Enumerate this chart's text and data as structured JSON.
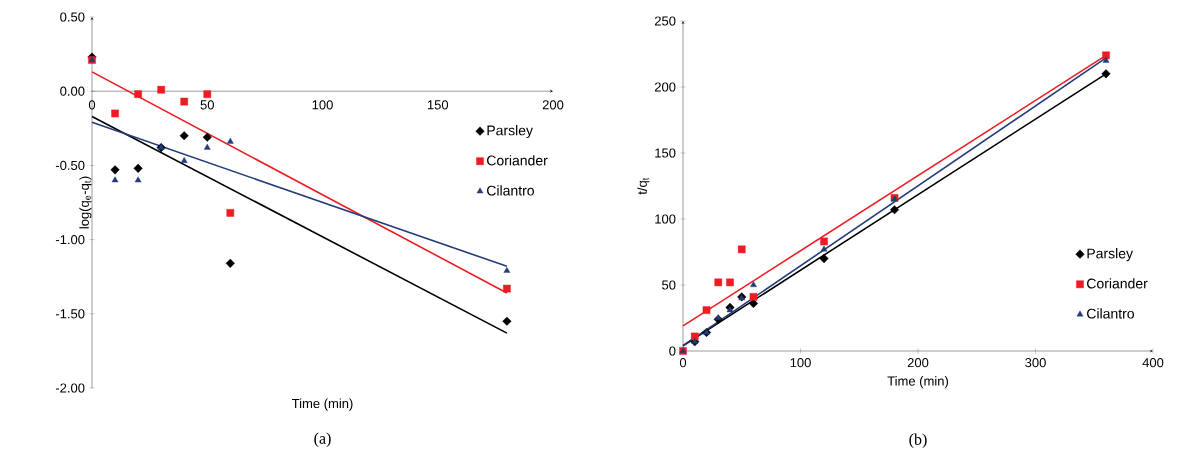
{
  "chart_data": [
    {
      "type": "scatter",
      "xlabel": "Time (min)",
      "ylabel": "log(q$_{e}$-q$_{t}$)",
      "xlim": [
        0,
        200
      ],
      "ylim": [
        -2,
        0.5
      ],
      "xticks": [
        0,
        50,
        100,
        150,
        200
      ],
      "yticks": [
        {
          "value": -2,
          "label": "-2.00"
        },
        {
          "value": -1.5,
          "label": "-1.50"
        },
        {
          "value": -1,
          "label": "-1.00"
        },
        {
          "value": -0.5,
          "label": "-0.50"
        },
        {
          "value": 0,
          "label": "0.00"
        },
        {
          "value": 0.5,
          "label": "0.50"
        }
      ],
      "legend": "right",
      "grid": false,
      "annotations": [
        "(a)"
      ],
      "series": [
        {
          "name": "Parsley",
          "color": "#000000",
          "marker": "diamond",
          "x": [
            0,
            10,
            20,
            30,
            40,
            50,
            60,
            180
          ],
          "values": [
            0.23,
            -0.53,
            -0.52,
            -0.38,
            -0.3,
            -0.31,
            -1.16,
            -1.55
          ]
        },
        {
          "name": "Coriander",
          "color": "#ed1c24",
          "marker": "square",
          "x": [
            0,
            10,
            20,
            30,
            40,
            50,
            60,
            180
          ],
          "values": [
            0.21,
            -0.15,
            -0.02,
            0.01,
            -0.07,
            -0.02,
            -0.82,
            -1.33
          ]
        },
        {
          "name": "Cilantro",
          "color": "#233d7a",
          "marker": "triangle",
          "x": [
            0,
            10,
            20,
            30,
            40,
            50,
            60,
            180
          ],
          "values": [
            0.21,
            -0.6,
            -0.6,
            -0.38,
            -0.47,
            -0.38,
            -0.34,
            -1.21
          ]
        },
        {
          "type": "line",
          "color": "#000000",
          "x": [
            0,
            180
          ],
          "values": [
            -0.17,
            -1.63
          ]
        },
        {
          "type": "line",
          "color": "#ed1c24",
          "x": [
            0,
            180
          ],
          "values": [
            0.13,
            -1.36
          ]
        },
        {
          "type": "line",
          "color": "#233d7a",
          "x": [
            0,
            180
          ],
          "values": [
            -0.21,
            -1.18
          ]
        }
      ]
    },
    {
      "type": "scatter",
      "xlabel": "Time (min)",
      "ylabel": "t/q$_{t}$",
      "xlim": [
        0,
        400
      ],
      "ylim": [
        0,
        250
      ],
      "xticks": [
        0,
        100,
        200,
        300,
        400
      ],
      "yticks": [
        0,
        50,
        100,
        150,
        200,
        250
      ],
      "legend": "bottom right",
      "grid": false,
      "annotations": [
        "(b)"
      ],
      "series": [
        {
          "name": "Parsley",
          "color": "#000000",
          "marker": "diamond",
          "x": [
            10,
            20,
            30,
            40,
            50,
            60,
            120,
            180,
            360
          ],
          "values": [
            7,
            14,
            24,
            33,
            41,
            36,
            70,
            107,
            210
          ]
        },
        {
          "name": "Coriander",
          "color": "#ed1c24",
          "marker": "square",
          "x": [
            0,
            10,
            20,
            30,
            40,
            50,
            60,
            120,
            180,
            360
          ],
          "values": [
            0,
            11,
            31,
            52,
            52,
            77,
            41,
            83,
            116,
            224
          ]
        },
        {
          "name": "Cilantro",
          "color": "#233d7a",
          "marker": "triangle",
          "x": [
            0,
            10,
            20,
            30,
            40,
            50,
            60,
            120,
            180,
            360
          ],
          "values": [
            0,
            7,
            14,
            25,
            31,
            40,
            50,
            77,
            115,
            220
          ]
        },
        {
          "type": "line",
          "color": "#000000",
          "x": [
            0,
            360
          ],
          "values": [
            4,
            210
          ]
        },
        {
          "type": "line",
          "color": "#ed1c24",
          "x": [
            0,
            360
          ],
          "values": [
            19,
            224
          ]
        },
        {
          "type": "line",
          "color": "#233d7a",
          "x": [
            0,
            360
          ],
          "values": [
            4,
            222
          ]
        }
      ]
    }
  ]
}
